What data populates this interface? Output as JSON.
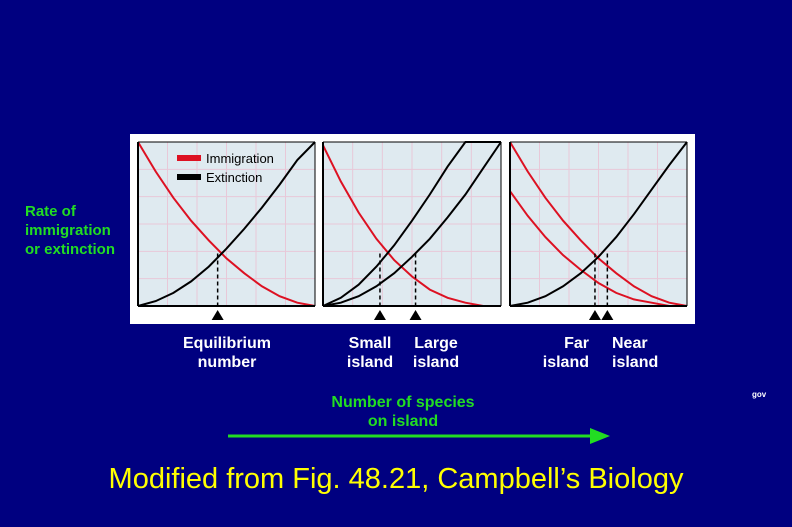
{
  "chart_data": {
    "type": "line",
    "ylabel_lines": [
      "Rate of",
      "immigration",
      "or extinction"
    ],
    "xlabel_lines": [
      "Number of species",
      "on island"
    ],
    "legend": [
      {
        "label": "Immigration",
        "color": "#dd1122"
      },
      {
        "label": "Extinction",
        "color": "#000000"
      }
    ],
    "legend_placement": "top-left of first panel",
    "panels": [
      {
        "x": [
          0,
          0.1,
          0.2,
          0.3,
          0.4,
          0.5,
          0.6,
          0.7,
          0.8,
          0.9,
          1.0
        ],
        "series": [
          {
            "kind": "immigration",
            "values": [
              1.0,
              0.82,
              0.66,
              0.52,
              0.4,
              0.29,
              0.2,
              0.12,
              0.06,
              0.02,
              0.0
            ]
          },
          {
            "kind": "extinction",
            "values": [
              0.0,
              0.03,
              0.08,
              0.15,
              0.24,
              0.35,
              0.47,
              0.6,
              0.74,
              0.89,
              1.0
            ]
          }
        ],
        "equilibria": [
          0.45
        ],
        "captions": [
          {
            "lines": [
              "Equilibrium",
              "number"
            ],
            "x": 0.45
          }
        ]
      },
      {
        "x": [
          0,
          0.1,
          0.2,
          0.3,
          0.4,
          0.5,
          0.6,
          0.7,
          0.8,
          0.9,
          1.0
        ],
        "series": [
          {
            "kind": "immigration",
            "values": [
              0.98,
              0.76,
              0.57,
              0.41,
              0.28,
              0.18,
              0.1,
              0.05,
              0.02,
              0.0,
              0.0
            ]
          },
          {
            "kind": "extinction",
            "values": [
              0.0,
              0.05,
              0.13,
              0.24,
              0.37,
              0.52,
              0.68,
              0.85,
              1.0,
              1.0,
              1.0
            ]
          },
          {
            "kind": "extinction",
            "values": [
              0.0,
              0.02,
              0.06,
              0.12,
              0.2,
              0.3,
              0.41,
              0.54,
              0.68,
              0.84,
              1.0
            ]
          }
        ],
        "equilibria": [
          0.32,
          0.52
        ],
        "captions": [
          {
            "lines": [
              "Small",
              "island"
            ],
            "x": 0.32
          },
          {
            "lines": [
              "Large",
              "island"
            ],
            "x": 0.52
          }
        ]
      },
      {
        "x": [
          0,
          0.1,
          0.2,
          0.3,
          0.4,
          0.5,
          0.6,
          0.7,
          0.8,
          0.9,
          1.0
        ],
        "series": [
          {
            "kind": "immigration",
            "values": [
              1.0,
              0.82,
              0.66,
              0.52,
              0.4,
              0.29,
              0.2,
              0.12,
              0.06,
              0.02,
              0.0
            ]
          },
          {
            "kind": "immigration",
            "values": [
              0.7,
              0.55,
              0.42,
              0.31,
              0.22,
              0.14,
              0.08,
              0.04,
              0.02,
              0.0,
              0.0
            ]
          },
          {
            "kind": "extinction",
            "values": [
              0.0,
              0.02,
              0.06,
              0.12,
              0.2,
              0.3,
              0.42,
              0.56,
              0.71,
              0.86,
              1.0
            ]
          }
        ],
        "equilibria": [
          0.48,
          0.55
        ],
        "captions": [
          {
            "lines": [
              "Far",
              "island"
            ],
            "x": 0.48
          },
          {
            "lines": [
              "Near",
              "island"
            ],
            "x": 0.55
          }
        ]
      }
    ]
  },
  "source_caption": "Modified from Fig. 48.21, Campbell’s Biology",
  "corner_text": "gov"
}
